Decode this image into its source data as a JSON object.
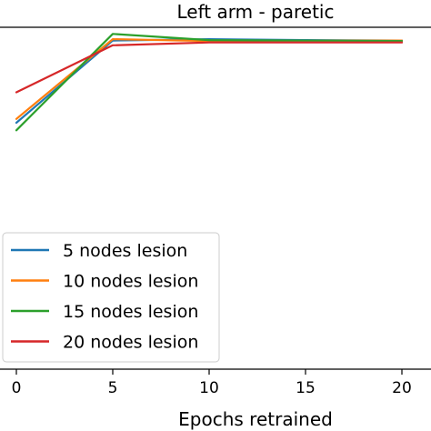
{
  "chart_data": {
    "type": "line",
    "title": "Left arm - paretic",
    "xlabel": "Epochs retrained",
    "ylabel": "",
    "x": [
      0,
      5,
      10,
      15,
      20
    ],
    "x_ticks": [
      0,
      5,
      10,
      15,
      20
    ],
    "x_tick_labels": [
      "0",
      "5",
      "10",
      "15",
      "20"
    ],
    "xlim": [
      -0.9,
      21.3
    ],
    "ylim": [
      -7.2,
      0.0
    ],
    "series": [
      {
        "name": "5 nodes lesion",
        "color": "#1f77b4",
        "values": [
          -2.01,
          -0.28,
          -0.25,
          -0.27,
          -0.28
        ]
      },
      {
        "name": "10 nodes lesion",
        "color": "#ff7f0e",
        "values": [
          -1.93,
          -0.25,
          -0.29,
          -0.28,
          -0.28
        ]
      },
      {
        "name": "15 nodes lesion",
        "color": "#2ca02c",
        "values": [
          -2.17,
          -0.14,
          -0.27,
          -0.28,
          -0.29
        ]
      },
      {
        "name": "20 nodes lesion",
        "color": "#d62728",
        "values": [
          -1.37,
          -0.38,
          -0.32,
          -0.32,
          -0.32
        ]
      }
    ],
    "grid": false,
    "legend": {
      "position": "lower-left"
    }
  }
}
